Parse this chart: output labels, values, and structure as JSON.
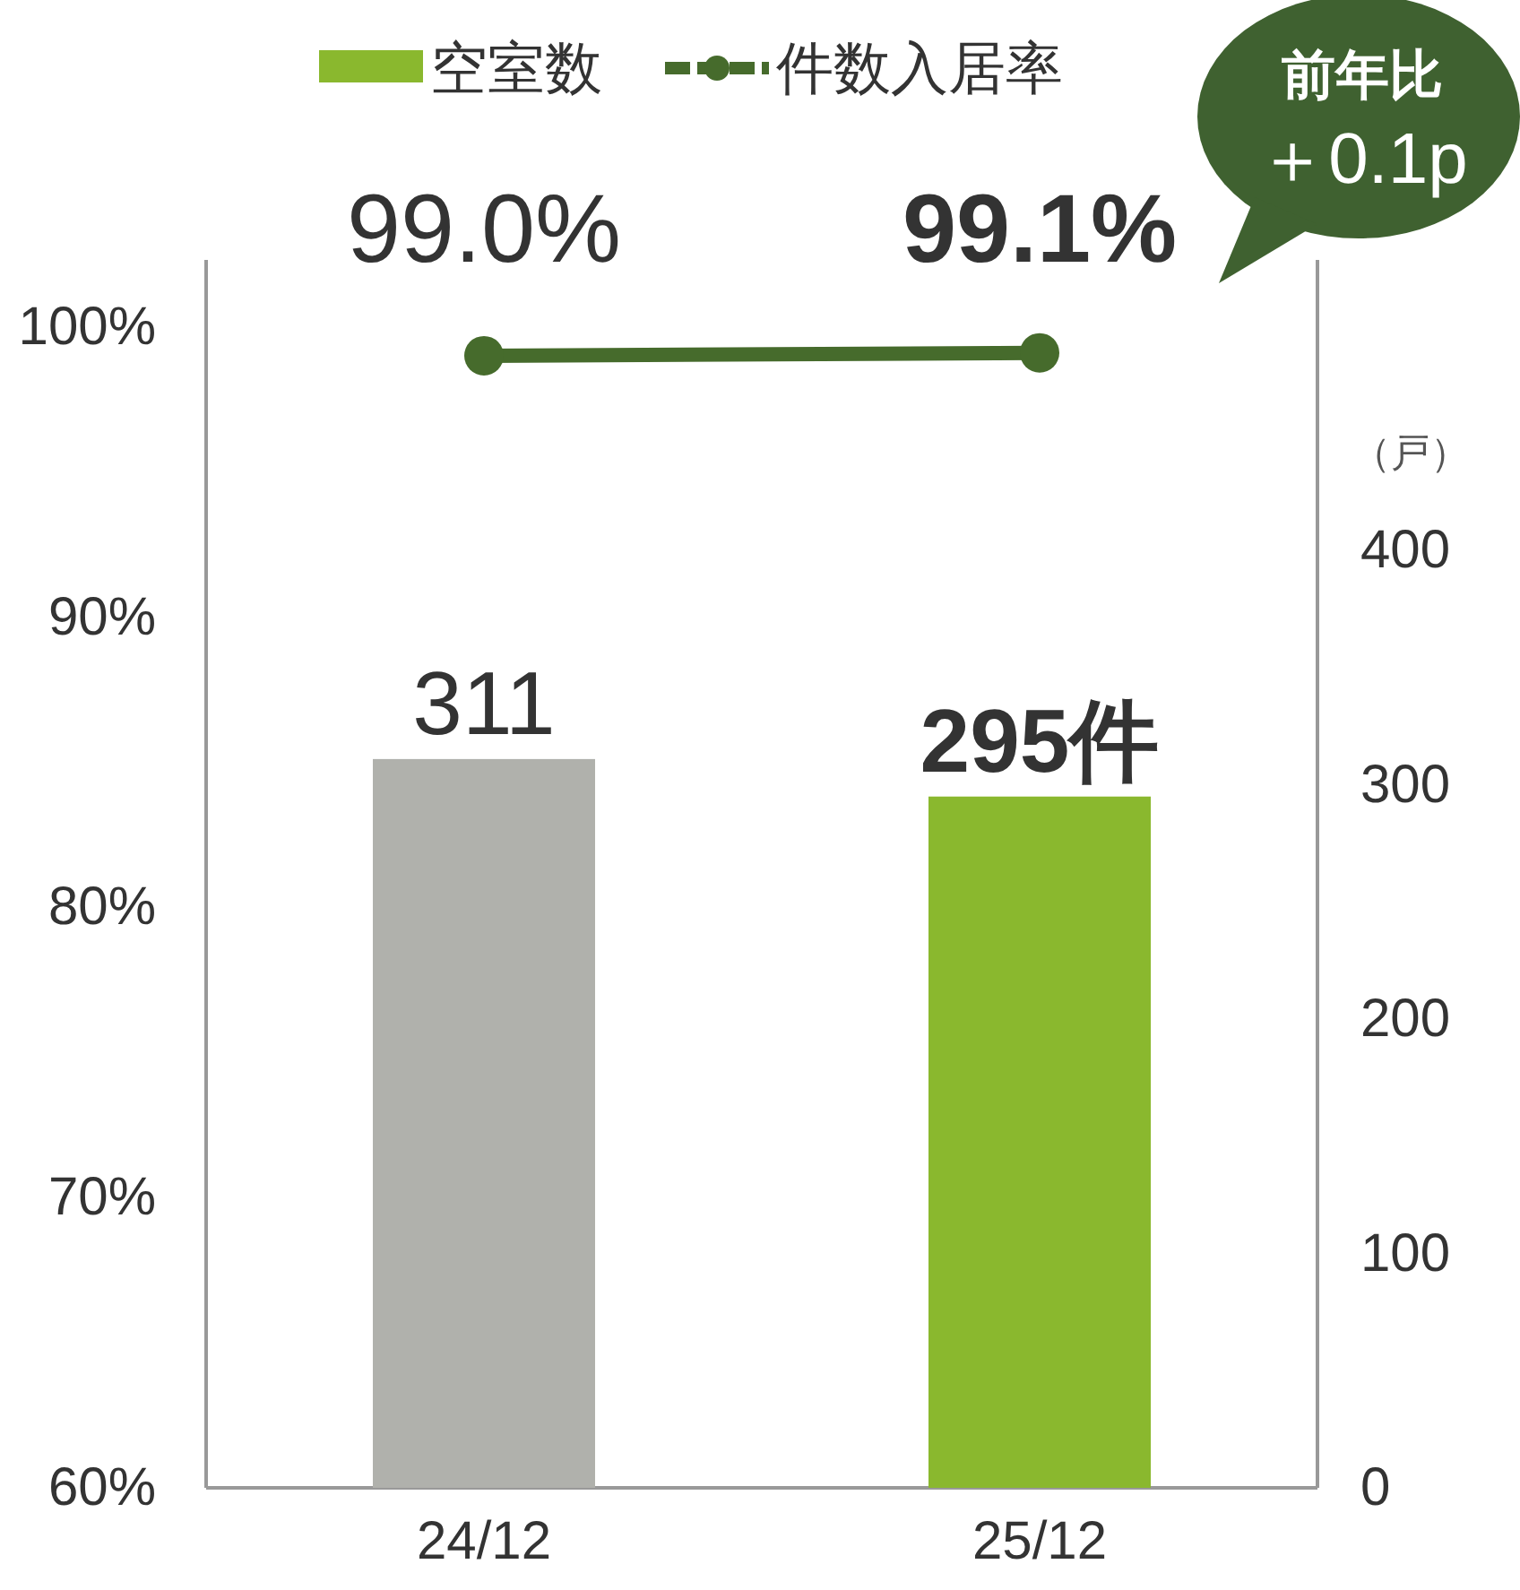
{
  "chart_data": {
    "type": "bar",
    "categories": [
      "24/12",
      "25/12"
    ],
    "series": [
      {
        "name": "空室数",
        "axis": "y2",
        "colors": [
          "#b0b1ac",
          "#8ab82e"
        ],
        "values": [
          311,
          295
        ],
        "value_labels": [
          "311",
          "295件"
        ]
      },
      {
        "name": "件数入居率",
        "type": "line",
        "axis": "y",
        "color": "#466b2c",
        "marker": "circle",
        "values": [
          99.0,
          99.1
        ],
        "value_labels": [
          "99.0%",
          "99.1%"
        ]
      }
    ],
    "ylim": [
      60,
      102.3
    ],
    "yticks": [
      {
        "value": 60,
        "label": "60%"
      },
      {
        "value": 70,
        "label": "70%"
      },
      {
        "value": 80,
        "label": "80%"
      },
      {
        "value": 90,
        "label": "90%"
      },
      {
        "value": 100,
        "label": "100%"
      }
    ],
    "y2lim": [
      0,
      524
    ],
    "y2ticks": [
      0,
      100,
      200,
      300,
      400
    ],
    "y2label": "（戸）",
    "legend": "top",
    "grid": false,
    "annotations": [
      "前年比",
      "＋0.1p"
    ]
  }
}
